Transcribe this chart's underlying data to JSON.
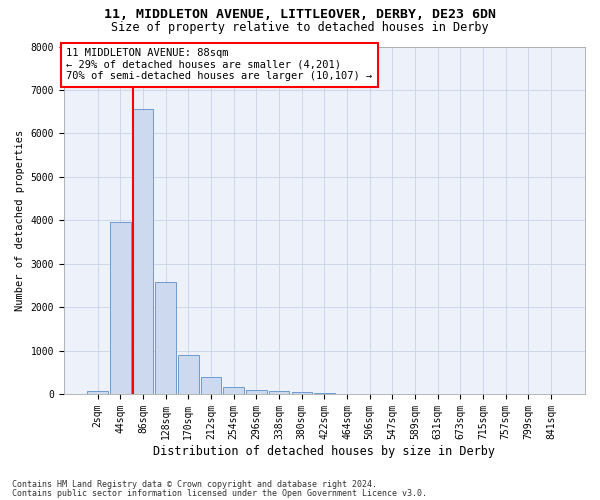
{
  "title1": "11, MIDDLETON AVENUE, LITTLEOVER, DERBY, DE23 6DN",
  "title2": "Size of property relative to detached houses in Derby",
  "xlabel": "Distribution of detached houses by size in Derby",
  "ylabel": "Number of detached properties",
  "bar_labels": [
    "2sqm",
    "44sqm",
    "86sqm",
    "128sqm",
    "170sqm",
    "212sqm",
    "254sqm",
    "296sqm",
    "338sqm",
    "380sqm",
    "422sqm",
    "464sqm",
    "506sqm",
    "547sqm",
    "589sqm",
    "631sqm",
    "673sqm",
    "715sqm",
    "757sqm",
    "799sqm",
    "841sqm"
  ],
  "bar_values": [
    60,
    3950,
    6550,
    2580,
    900,
    400,
    150,
    100,
    75,
    40,
    20,
    10,
    5,
    3,
    2,
    1,
    1,
    0,
    0,
    0,
    0
  ],
  "bar_color": "#ccd9ef",
  "bar_edge_color": "#5b8fc9",
  "annotation_text": "11 MIDDLETON AVENUE: 88sqm\n← 29% of detached houses are smaller (4,201)\n70% of semi-detached houses are larger (10,107) →",
  "annotation_box_color": "white",
  "annotation_box_edge": "red",
  "red_line_color": "red",
  "grid_color": "#c8d4e8",
  "background_color": "#edf2fa",
  "ylim": [
    0,
    8000
  ],
  "yticks": [
    0,
    1000,
    2000,
    3000,
    4000,
    5000,
    6000,
    7000,
    8000
  ],
  "footer1": "Contains HM Land Registry data © Crown copyright and database right 2024.",
  "footer2": "Contains public sector information licensed under the Open Government Licence v3.0.",
  "title1_fontsize": 9.5,
  "title2_fontsize": 8.5,
  "xlabel_fontsize": 8.5,
  "ylabel_fontsize": 7.5,
  "tick_fontsize": 7,
  "annotation_fontsize": 7.5,
  "footer_fontsize": 6
}
